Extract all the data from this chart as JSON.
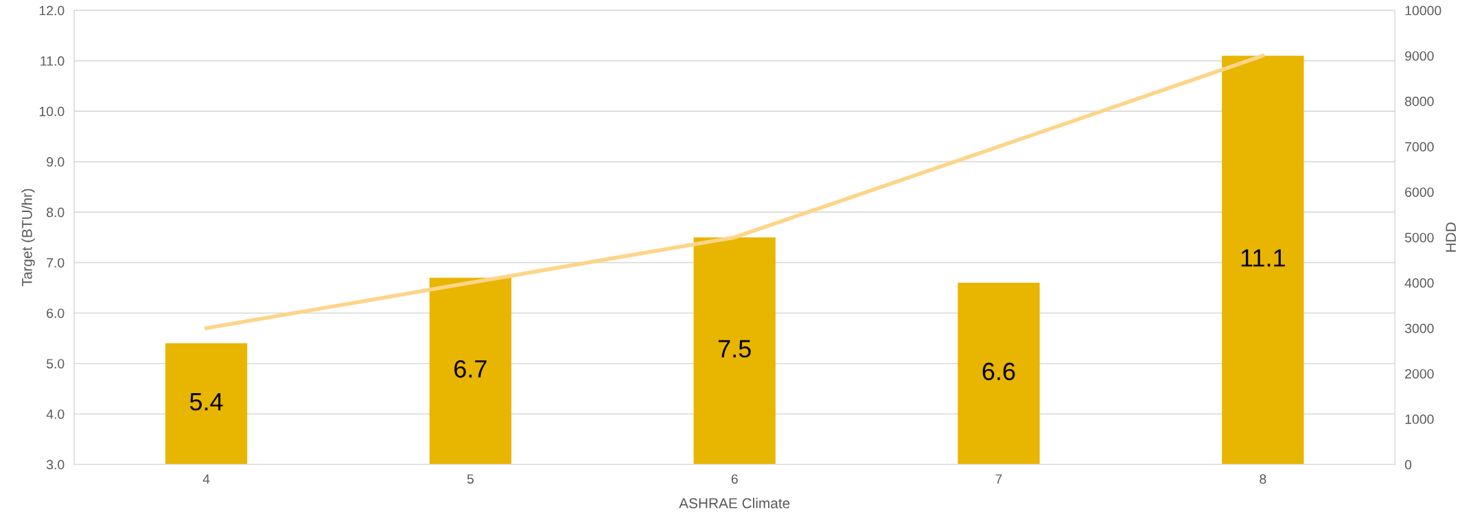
{
  "chart_data": {
    "type": "bar",
    "xlabel": "ASHRAE Climate",
    "ylabel": "Target (BTU/hr)",
    "y2label": "HDD",
    "categories": [
      "4",
      "5",
      "6",
      "7",
      "8"
    ],
    "series": [
      {
        "color": "#e8b500",
        "values": [
          5.4,
          6.7,
          7.5,
          6.6,
          11.1
        ],
        "value_labels": [
          "5.4",
          "6.7",
          "7.5",
          "6.6",
          "11.1"
        ]
      },
      {
        "type": "line",
        "axis": "y2",
        "color": "#fdd58a",
        "values": [
          3000,
          4000,
          5000,
          7000,
          9000
        ]
      }
    ],
    "ylim": [
      3,
      12
    ],
    "yticks": [
      {
        "value": 3,
        "label": "3.0"
      },
      {
        "value": 4,
        "label": "4.0"
      },
      {
        "value": 5,
        "label": "5.0"
      },
      {
        "value": 6,
        "label": "6.0"
      },
      {
        "value": 7,
        "label": "7.0"
      },
      {
        "value": 8,
        "label": "8.0"
      },
      {
        "value": 9,
        "label": "9.0"
      },
      {
        "value": 10,
        "label": "10.0"
      },
      {
        "value": 11,
        "label": "11.0"
      },
      {
        "value": 12,
        "label": "12.0"
      }
    ],
    "y2lim": [
      0,
      10000
    ],
    "y2ticks": [
      0,
      1000,
      2000,
      3000,
      4000,
      5000,
      6000,
      7000,
      8000,
      9000,
      10000
    ],
    "grid": "y",
    "legend": false,
    "marker": "none",
    "line_style": "solid"
  }
}
